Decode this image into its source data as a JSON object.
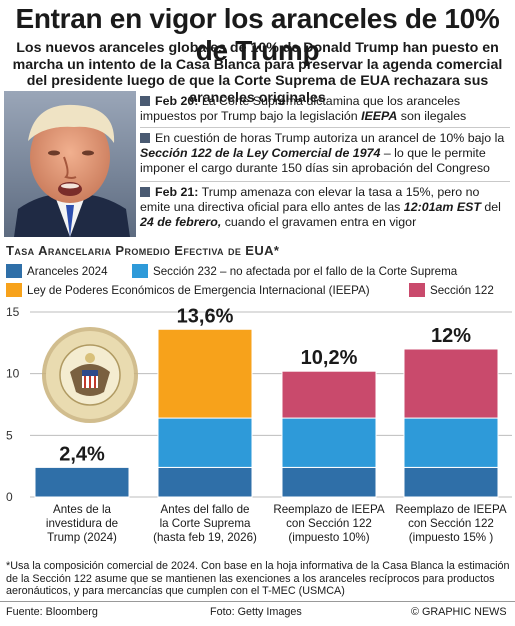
{
  "header": {
    "title": "Entran en vigor los aranceles de 10% de Trump",
    "subtitle": "Los nuevos aranceles globales de 10% de Donald Trump han puesto en marcha un intento de la Casa Blanca para preservar la agenda comercial del presidente luego de que la Corte Suprema de EUA rechazara sus aranceles originales"
  },
  "timeline": [
    {
      "date": "Feb 20:",
      "text_before": " La Corte Suprema dictamina que los aranceles impuestos por Trump bajo la legislación ",
      "emph": "IEEPA",
      "text_after": " son ilegales"
    },
    {
      "date": "",
      "text_before": "En cuestión de horas Trump autoriza un arancel de 10% bajo la ",
      "emph": "Sección 122 de la Ley Comercial de 1974",
      "text_after": " – lo que le permite imponer el cargo durante 150 días sin aprobación del Congreso"
    },
    {
      "date": "Feb 21:",
      "text_before": " Trump amenaza con elevar la tasa a 15%, pero no emite una directiva oficial para ello antes de las ",
      "emph": "12:01am EST",
      "text_mid": " del ",
      "emph2": "24 de febrero,",
      "text_after": " cuando el gravamen entra en vigor"
    }
  ],
  "chart_data": {
    "type": "bar",
    "stacked": true,
    "title": "Tasa Arancelaria Promedio Efectiva de EUA*",
    "categories": [
      "Antes de la investidura de Trump (2024)",
      "Antes del fallo de la Corte Suprema (hasta feb 19, 2026)",
      "Reemplazo de IEEPA con Sección 122 (impuesto 10%)",
      "Reemplazo de IEEPA con Sección 122 (impuesto 15% )"
    ],
    "category_lines": [
      [
        "Antes de la",
        "investidura de",
        "Trump (2024)"
      ],
      [
        "Antes del fallo de",
        "la Corte Suprema",
        "(hasta feb 19, 2026)"
      ],
      [
        "Reemplazo de IEEPA",
        "con Sección 122",
        "(impuesto 10%)"
      ],
      [
        "Reemplazo de IEEPA",
        "con Sección 122",
        "(impuesto 15% )"
      ]
    ],
    "series": [
      {
        "name": "Aranceles 2024",
        "color": "#2f6fa8",
        "values": [
          2.4,
          2.4,
          2.4,
          2.4
        ]
      },
      {
        "name": "Sección 232 – no afectada por el fallo de la Corte Suprema",
        "color": "#2e9ad9",
        "values": [
          0,
          4.0,
          4.0,
          4.0
        ]
      },
      {
        "name": "Ley de Poderes Económicos de Emergencia Internacional (IEEPA)",
        "color": "#f7a21b",
        "values": [
          0,
          7.2,
          0,
          0
        ]
      },
      {
        "name": "Sección 122",
        "color": "#c94a6c",
        "values": [
          0,
          0,
          3.8,
          5.6
        ]
      }
    ],
    "totals_labels": [
      "2,4%",
      "13,6%",
      "10,2%",
      "12%"
    ],
    "y_ticks": [
      "0",
      "5",
      "10",
      "15"
    ],
    "ylim": [
      0,
      15
    ],
    "grid": true,
    "legend_position": "top"
  },
  "footnote": "*Usa la composición comercial de 2024. Con base en la hoja informativa de la Casa Blanca la estimación de la Sección 122 asume que se mantienen las exenciones a los aranceles recíprocos para productos aeronáuticos, y para mercancías que cumplen con el T-MEC (USMCA)",
  "footer": {
    "source": "Fuente: Bloomberg",
    "photo": "Foto: Getty Images",
    "credit": "© GRAPHIC NEWS"
  }
}
